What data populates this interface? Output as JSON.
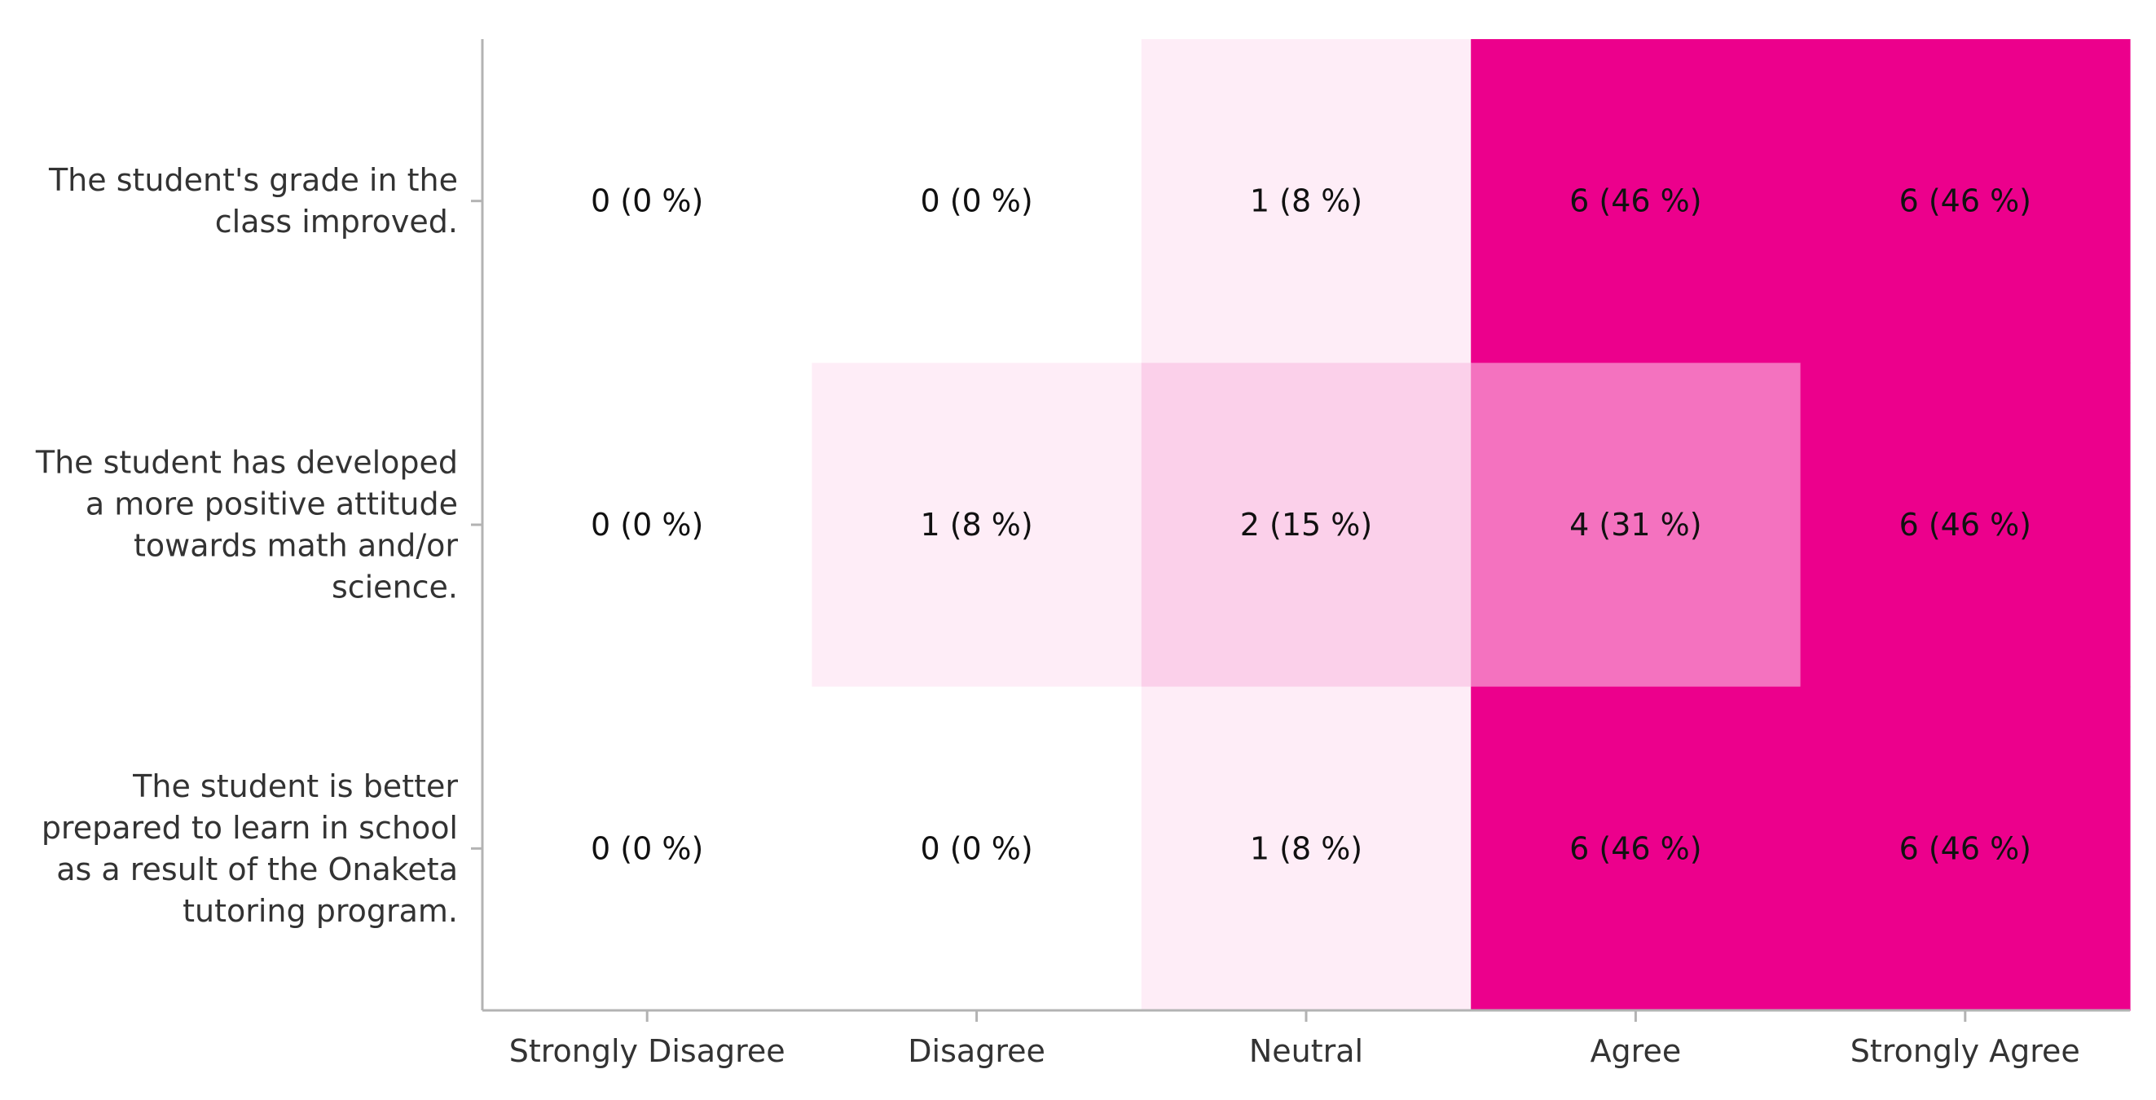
{
  "chart_data": {
    "type": "heatmap",
    "title": "",
    "xlabel": "",
    "ylabel": "",
    "x_categories": [
      "Strongly Disagree",
      "Disagree",
      "Neutral",
      "Agree",
      "Strongly Agree"
    ],
    "y_categories": [
      "The student's grade in the class improved.",
      "The student has developed a more positive attitude towards math and/or science.",
      "The student is better prepared to learn in school as a result of the Onaketa tutoring program."
    ],
    "y_category_lines": [
      [
        "The student's grade in the",
        "class improved."
      ],
      [
        "The student has developed",
        "a more positive attitude",
        "towards math and/or",
        "science."
      ],
      [
        "The student is better",
        "prepared to learn in school",
        "as a result of the Onaketa",
        "tutoring program."
      ]
    ],
    "counts": [
      [
        0,
        0,
        1,
        6,
        6
      ],
      [
        0,
        1,
        2,
        4,
        6
      ],
      [
        0,
        0,
        1,
        6,
        6
      ]
    ],
    "percents": [
      [
        0,
        0,
        8,
        46,
        46
      ],
      [
        0,
        8,
        15,
        31,
        46
      ],
      [
        0,
        0,
        8,
        46,
        46
      ]
    ],
    "cell_labels": [
      [
        "0 (0 %)",
        "0 (0 %)",
        "1 (8 %)",
        "6 (46 %)",
        "6 (46 %)"
      ],
      [
        "0 (0 %)",
        "1 (8 %)",
        "2 (15 %)",
        "4 (31 %)",
        "6 (46 %)"
      ],
      [
        "0 (0 %)",
        "0 (0 %)",
        "1 (8 %)",
        "6 (46 %)",
        "6 (46 %)"
      ]
    ],
    "color_min": "#ffffff",
    "color_max": "#ec008c",
    "grid": false,
    "legend": "none"
  }
}
